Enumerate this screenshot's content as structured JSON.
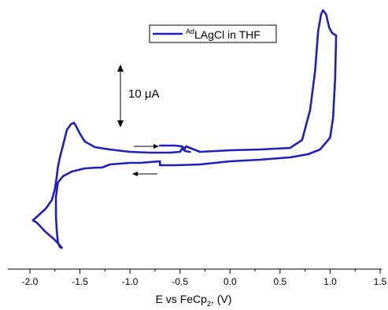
{
  "chart_data": {
    "type": "line",
    "title": "",
    "xlabel_main": "E vs FeCp",
    "xlabel_sub": "2",
    "xlabel_unit": ", (V)",
    "ylabel": "",
    "xlim": [
      -2.15,
      1.5
    ],
    "xticks": [
      -2.0,
      -1.5,
      -1.0,
      -0.5,
      0.0,
      0.5,
      1.0,
      1.5
    ],
    "xtick_labels": [
      "-2.0",
      "-1.5",
      "-1.0",
      "-0.5",
      "0.0",
      "0.5",
      "1.0",
      "1.5"
    ],
    "grid": false,
    "legend": {
      "position": "top-center",
      "prefix_superscript": "Ad",
      "label": "LAgCl in THF"
    },
    "scale_bar": {
      "label": "10 μA",
      "current_uA": 10
    },
    "sweep_arrows": [
      {
        "direction": "right",
        "near_x": -0.85,
        "branch": "upper"
      },
      {
        "direction": "left",
        "near_x": -0.85,
        "branch": "lower"
      }
    ],
    "series": [
      {
        "name": "AdLAgCl in THF",
        "color": "#1f1fbf",
        "points": [
          [
            -0.7,
            185
          ],
          [
            -0.55,
            185
          ],
          [
            -0.48,
            186
          ],
          [
            -0.46,
            191
          ],
          [
            -0.44,
            186
          ],
          [
            -0.3,
            193
          ],
          [
            0.0,
            191
          ],
          [
            0.3,
            190
          ],
          [
            0.6,
            188
          ],
          [
            0.72,
            178
          ],
          [
            0.8,
            140
          ],
          [
            0.85,
            90
          ],
          [
            0.88,
            40
          ],
          [
            0.91,
            18
          ],
          [
            0.93,
            13
          ],
          [
            0.96,
            18
          ],
          [
            0.99,
            35
          ],
          [
            1.02,
            42
          ],
          [
            1.06,
            45
          ],
          [
            1.05,
            100
          ],
          [
            1.03,
            150
          ],
          [
            1.0,
            175
          ],
          [
            0.9,
            190
          ],
          [
            0.78,
            196
          ],
          [
            0.6,
            200
          ],
          [
            0.3,
            203
          ],
          [
            0.0,
            205
          ],
          [
            -0.3,
            209
          ],
          [
            -0.55,
            210
          ],
          [
            -0.7,
            210
          ],
          [
            -0.7,
            205
          ],
          [
            -0.9,
            207
          ],
          [
            -1.0,
            207
          ],
          [
            -1.1,
            208
          ],
          [
            -1.2,
            209
          ],
          [
            -1.28,
            213
          ],
          [
            -1.33,
            213
          ],
          [
            -1.45,
            214
          ],
          [
            -1.58,
            218
          ],
          [
            -1.67,
            224
          ],
          [
            -1.72,
            232
          ],
          [
            -1.74,
            250
          ],
          [
            -1.74,
            275
          ],
          [
            -1.73,
            295
          ],
          [
            -1.72,
            308
          ],
          [
            -1.7,
            314
          ],
          [
            -1.68,
            315
          ],
          [
            -1.75,
            305
          ],
          [
            -1.85,
            294
          ],
          [
            -1.93,
            283
          ],
          [
            -1.97,
            280
          ],
          [
            -1.9,
            272
          ],
          [
            -1.84,
            265
          ],
          [
            -1.78,
            254
          ],
          [
            -1.75,
            240
          ],
          [
            -1.73,
            223
          ],
          [
            -1.72,
            212
          ],
          [
            -1.7,
            200
          ],
          [
            -1.67,
            185
          ],
          [
            -1.63,
            165
          ],
          [
            -1.59,
            158
          ],
          [
            -1.56,
            156
          ],
          [
            -1.54,
            160
          ],
          [
            -1.5,
            170
          ],
          [
            -1.45,
            180
          ],
          [
            -1.35,
            187
          ],
          [
            -1.2,
            190
          ],
          [
            -1.0,
            193
          ],
          [
            -0.8,
            194
          ],
          [
            -0.6,
            194
          ],
          [
            -0.5,
            193
          ],
          [
            -0.47,
            187
          ],
          [
            -0.45,
            192
          ],
          [
            -0.4,
            193
          ]
        ]
      }
    ]
  }
}
